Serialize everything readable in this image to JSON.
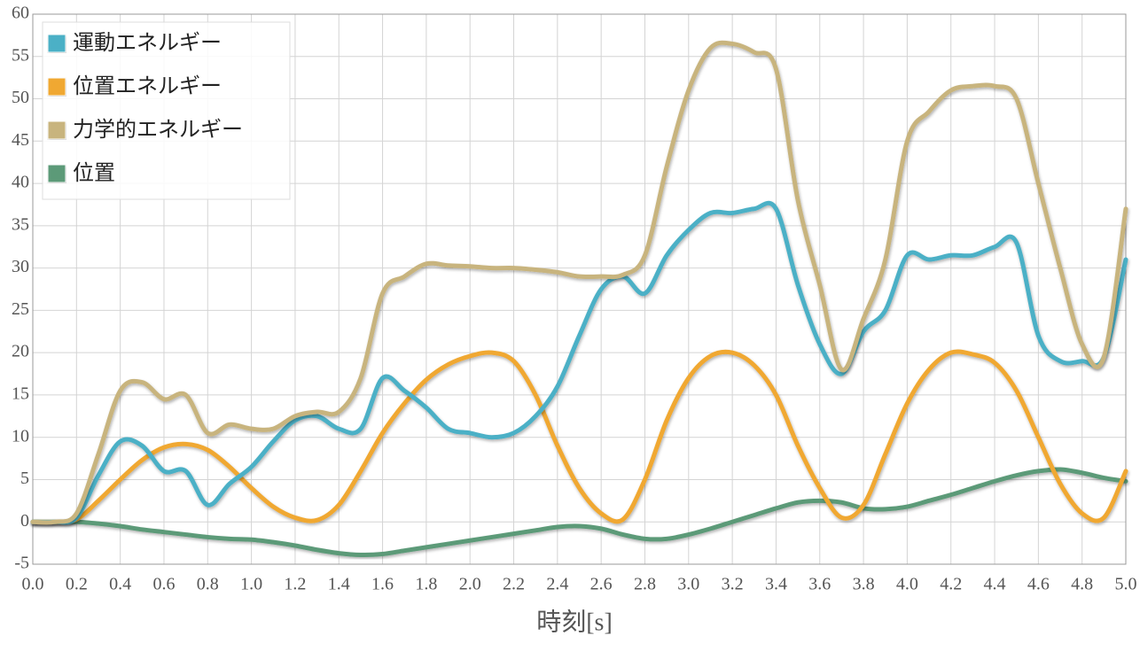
{
  "chart_data": {
    "type": "line",
    "x_label": "時刻[s]",
    "x": [
      0,
      0.1,
      0.2,
      0.3,
      0.4,
      0.5,
      0.6,
      0.7,
      0.8,
      0.9,
      1.0,
      1.1,
      1.2,
      1.3,
      1.4,
      1.5,
      1.6,
      1.7,
      1.8,
      1.9,
      2.0,
      2.1,
      2.2,
      2.3,
      2.4,
      2.5,
      2.6,
      2.7,
      2.8,
      2.9,
      3.0,
      3.1,
      3.2,
      3.3,
      3.4,
      3.5,
      3.6,
      3.7,
      3.8,
      3.9,
      4.0,
      4.1,
      4.2,
      4.3,
      4.4,
      4.5,
      4.6,
      4.7,
      4.8,
      4.9,
      5.0
    ],
    "series": [
      {
        "name": "運動エネルギー",
        "color": "#4bb0c6",
        "values": [
          0,
          0,
          0.5,
          5.5,
          9.5,
          9,
          6,
          6,
          2,
          4.5,
          6.5,
          9.5,
          12,
          12.5,
          11,
          11,
          17,
          15.5,
          13.5,
          11,
          10.5,
          10,
          10.5,
          12.5,
          16,
          22,
          27.5,
          29,
          27,
          31.5,
          34.5,
          36.5,
          36.5,
          37,
          37,
          28,
          21,
          17.5,
          22.5,
          25,
          31.5,
          31,
          31.5,
          31.5,
          32.5,
          33,
          22,
          19,
          19,
          19.5,
          31
        ]
      },
      {
        "name": "位置エネルギー",
        "color": "#f0a830",
        "values": [
          0,
          0,
          0.3,
          2.5,
          5,
          7.3,
          8.8,
          9.2,
          8.5,
          6.5,
          4,
          1.8,
          0.5,
          0.2,
          2,
          6,
          10.5,
          14,
          16.8,
          18.6,
          19.6,
          20,
          19,
          15,
          9,
          4,
          1,
          0.3,
          5,
          12,
          17,
          19.6,
          20,
          18.5,
          15,
          9,
          4,
          0.5,
          2,
          8,
          14,
          18,
          20,
          19.8,
          18.8,
          15.5,
          10,
          4.5,
          1,
          0.5,
          6
        ]
      },
      {
        "name": "力学的エネルギー",
        "color": "#c8b47e",
        "values": [
          0,
          0,
          1,
          8,
          15.5,
          16.5,
          14.5,
          15,
          10.5,
          11.5,
          11,
          11,
          12.5,
          13,
          13,
          17,
          27,
          29,
          30.5,
          30.3,
          30.2,
          30,
          30,
          29.8,
          29.5,
          29,
          29,
          29.2,
          31.5,
          42,
          51,
          56,
          56.5,
          55.5,
          53.5,
          38,
          28,
          18,
          24,
          31,
          45,
          48.5,
          51,
          51.5,
          51.5,
          50,
          40,
          30,
          21,
          19.5,
          37
        ]
      },
      {
        "name": "位置",
        "color": "#5b9a78",
        "values": [
          0,
          0,
          0,
          -0.2,
          -0.5,
          -0.9,
          -1.2,
          -1.5,
          -1.8,
          -2,
          -2.1,
          -2.4,
          -2.8,
          -3.3,
          -3.7,
          -3.9,
          -3.8,
          -3.4,
          -3,
          -2.6,
          -2.2,
          -1.8,
          -1.4,
          -1,
          -0.6,
          -0.5,
          -0.8,
          -1.5,
          -2,
          -2,
          -1.5,
          -0.8,
          0,
          0.8,
          1.6,
          2.3,
          2.5,
          2.3,
          1.6,
          1.5,
          1.8,
          2.5,
          3.2,
          4,
          4.8,
          5.5,
          6,
          6.2,
          5.8,
          5.2,
          4.8
        ]
      }
    ],
    "xlim": [
      0,
      5
    ],
    "ylim": [
      -5,
      60
    ],
    "xticks": [
      {
        "value": 0,
        "label": "0.0"
      },
      0.2,
      0.4,
      0.6,
      0.8,
      {
        "value": 1,
        "label": "1.0"
      },
      1.2,
      1.4,
      1.6,
      1.8,
      {
        "value": 2,
        "label": "2.0"
      },
      2.2,
      2.4,
      2.6,
      2.8,
      {
        "value": 3,
        "label": "3.0"
      },
      3.2,
      3.4,
      3.6,
      3.8,
      {
        "value": 4,
        "label": "4.0"
      },
      4.2,
      4.4,
      4.6,
      4.8,
      {
        "value": 5,
        "label": "5.0"
      }
    ],
    "yticks": [
      -5,
      0,
      5,
      10,
      15,
      20,
      25,
      30,
      35,
      40,
      45,
      50,
      55,
      60
    ],
    "grid": true,
    "legend": "top-left"
  }
}
